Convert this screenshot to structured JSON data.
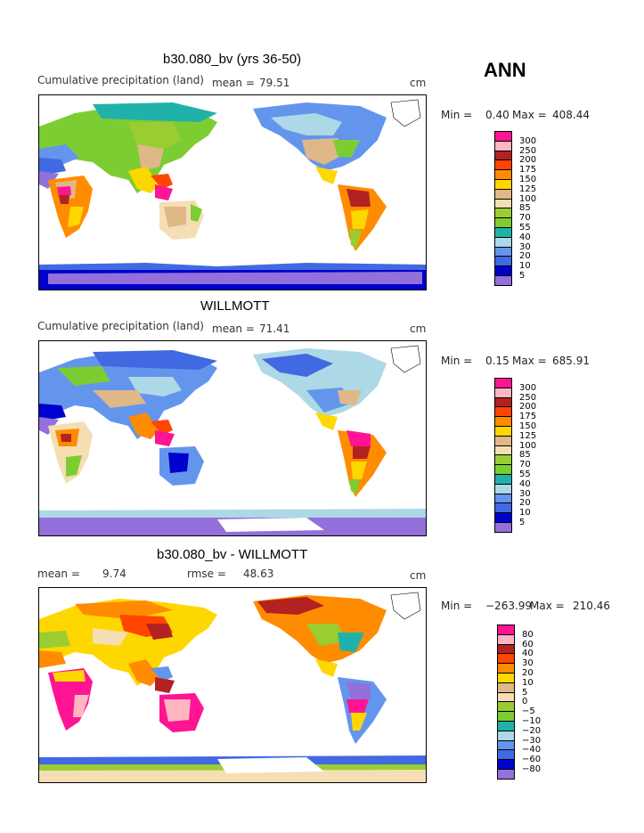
{
  "season": "ANN",
  "panels": [
    {
      "title": "b30.080_bv (yrs 36-50)",
      "left_label": "Cumulative precipitation (land)",
      "stat_label": "mean =",
      "stat_value": "79.51",
      "stat2_label": "",
      "stat2_value": "",
      "units": "cm",
      "min_label": "Min =",
      "min_value": "0.40",
      "max_label": "Max =",
      "max_value": "408.44",
      "legend": [
        "300",
        "250",
        "200",
        "175",
        "150",
        "125",
        "100",
        "85",
        "70",
        "55",
        "40",
        "30",
        "20",
        "10",
        "5"
      ]
    },
    {
      "title": "WILLMOTT",
      "left_label": "Cumulative precipitation (land)",
      "stat_label": "mean =",
      "stat_value": "71.41",
      "stat2_label": "",
      "stat2_value": "",
      "units": "cm",
      "min_label": "Min =",
      "min_value": "0.15",
      "max_label": "Max =",
      "max_value": "685.91",
      "legend": [
        "300",
        "250",
        "200",
        "175",
        "150",
        "125",
        "100",
        "85",
        "70",
        "55",
        "40",
        "30",
        "20",
        "10",
        "5"
      ]
    },
    {
      "title": "b30.080_bv - WILLMOTT",
      "left_label": "",
      "stat_label": "mean =",
      "stat_value": "9.74",
      "stat2_label": "rmse =",
      "stat2_value": "48.63",
      "units": "cm",
      "min_label": "Min =",
      "min_value": "−263.99",
      "max_label": "Max =",
      "max_value": "210.46",
      "legend": [
        "80",
        "60",
        "40",
        "30",
        "20",
        "10",
        "5",
        "0",
        "−5",
        "−10",
        "−20",
        "−30",
        "−40",
        "−60",
        "−80"
      ]
    }
  ],
  "colors": {
    "precip_scale": [
      "#ff1493",
      "#ffb6c1",
      "#b22222",
      "#ff4500",
      "#ff8c00",
      "#ffd700",
      "#deb887",
      "#f5deb3",
      "#9acd32",
      "#7ccd32",
      "#20b2aa",
      "#add8e6",
      "#6495ed",
      "#4169e1",
      "#0000cd",
      "#9370db"
    ],
    "diff_scale": [
      "#ff1493",
      "#ffb6c1",
      "#b22222",
      "#ff4500",
      "#ff8c00",
      "#ffd700",
      "#deb887",
      "#f5deb3",
      "#9acd32",
      "#7ccd32",
      "#20b2aa",
      "#add8e6",
      "#6495ed",
      "#4169e1",
      "#0000cd",
      "#9370db"
    ]
  }
}
